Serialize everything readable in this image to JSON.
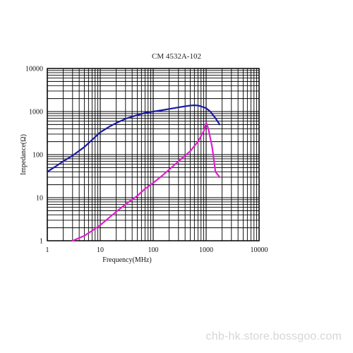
{
  "watermark": "chb-hk.store.bossgoo.com",
  "chart_data": {
    "type": "line",
    "title": "CM 4532A-102",
    "xlabel": "Frequency(MHz)",
    "ylabel": "Impedance(Ω)",
    "x_scale": "log",
    "y_scale": "log",
    "xlim": [
      1,
      10000
    ],
    "ylim": [
      1,
      10000
    ],
    "x_ticks": [
      "1",
      "10",
      "100",
      "1000",
      "10000"
    ],
    "y_ticks": [
      "1",
      "10",
      "100",
      "1000",
      "10000"
    ],
    "grid": true,
    "series": [
      {
        "color": "#1a1aa8",
        "x": [
          1,
          1.5,
          2,
          3,
          5,
          7,
          10,
          15,
          20,
          30,
          50,
          70,
          100,
          150,
          200,
          300,
          400,
          500,
          600,
          700,
          800,
          1000,
          1200,
          1500,
          1800
        ],
        "y": [
          40,
          55,
          70,
          95,
          150,
          220,
          330,
          450,
          540,
          680,
          830,
          930,
          1000,
          1080,
          1150,
          1250,
          1320,
          1380,
          1400,
          1380,
          1320,
          1200,
          1000,
          700,
          500
        ]
      },
      {
        "color": "#e020d0",
        "x": [
          3,
          5,
          7,
          10,
          15,
          20,
          30,
          50,
          70,
          100,
          150,
          200,
          300,
          500,
          700,
          900,
          1000,
          1100,
          1300,
          1500,
          1800
        ],
        "y": [
          1,
          1.3,
          1.7,
          2.3,
          3.5,
          4.7,
          7,
          11,
          16,
          22,
          33,
          45,
          70,
          120,
          200,
          350,
          550,
          400,
          150,
          40,
          30
        ]
      }
    ]
  }
}
